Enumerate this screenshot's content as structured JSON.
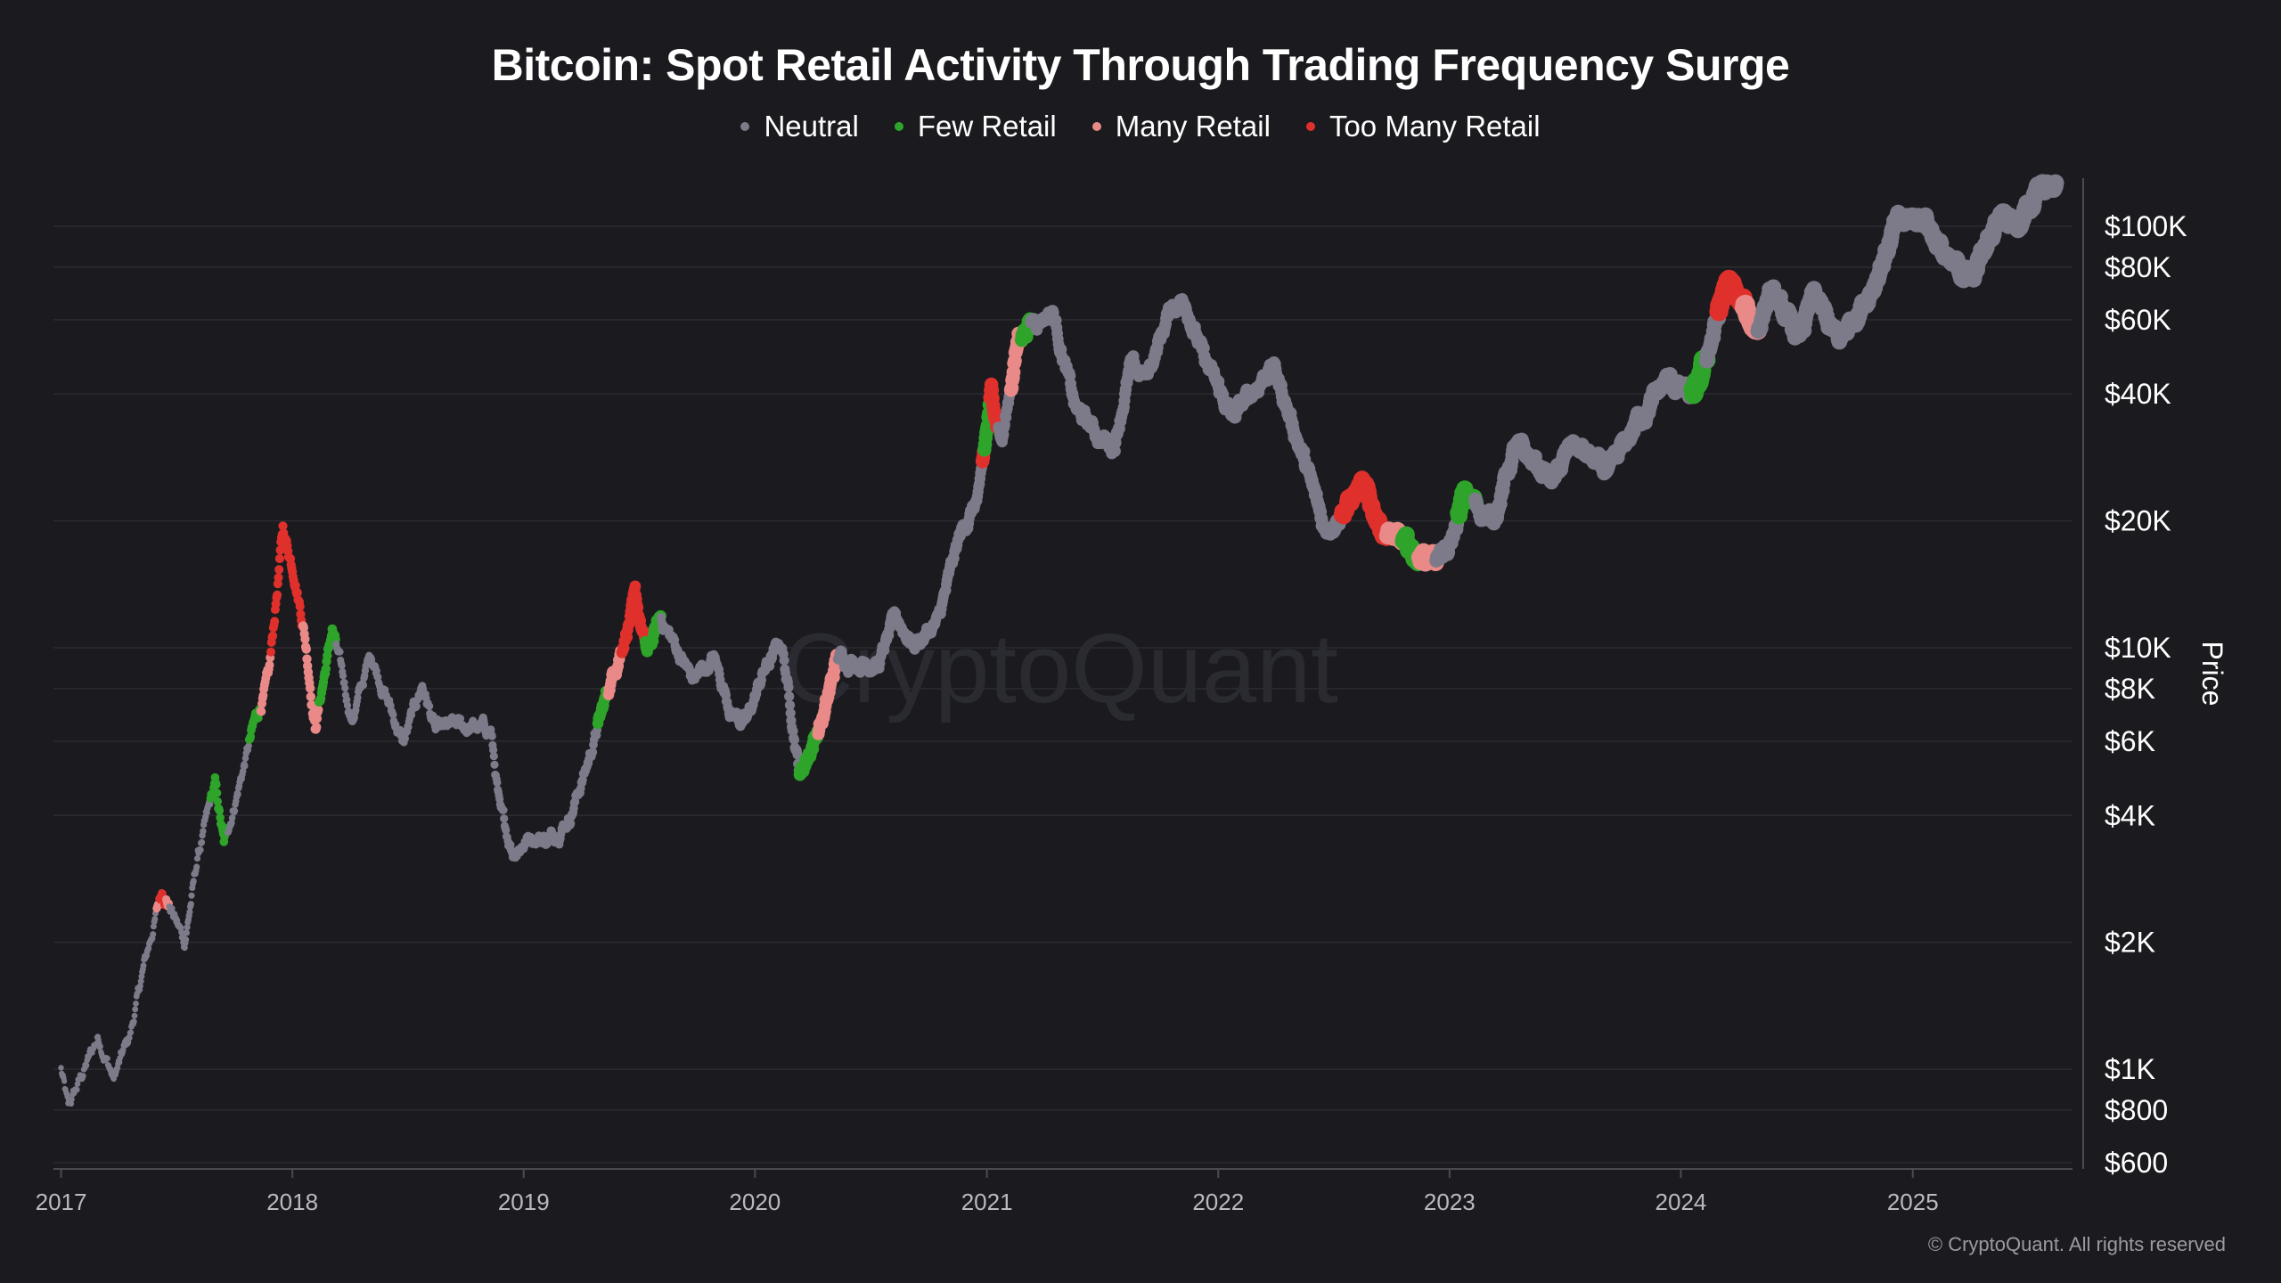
{
  "chart_data": {
    "type": "scatter",
    "title": "Bitcoin: Spot Retail Activity Through Trading Frequency Surge",
    "ylabel": "Price",
    "yscale": "log",
    "ylim": [
      580,
      130000
    ],
    "xlim": [
      "2016-12-20",
      "2025-09-10"
    ],
    "grid": true,
    "legend_position": "top-center",
    "x_ticks": [
      "2017",
      "2018",
      "2019",
      "2020",
      "2021",
      "2022",
      "2023",
      "2024",
      "2025"
    ],
    "y_ticks": [
      {
        "value": 100000,
        "label": "$100K"
      },
      {
        "value": 80000,
        "label": "$80K"
      },
      {
        "value": 60000,
        "label": "$60K"
      },
      {
        "value": 40000,
        "label": "$40K"
      },
      {
        "value": 20000,
        "label": "$20K"
      },
      {
        "value": 10000,
        "label": "$10K"
      },
      {
        "value": 8000,
        "label": "$8K"
      },
      {
        "value": 6000,
        "label": "$6K"
      },
      {
        "value": 4000,
        "label": "$4K"
      },
      {
        "value": 2000,
        "label": "$2K"
      },
      {
        "value": 1000,
        "label": "$1K"
      },
      {
        "value": 800,
        "label": "$800"
      },
      {
        "value": 600,
        "label": "$600"
      }
    ],
    "series": [
      {
        "name": "Neutral",
        "color": "#7d7b8a"
      },
      {
        "name": "Few Retail",
        "color": "#2ea52a"
      },
      {
        "name": "Many Retail",
        "color": "#e98a88"
      },
      {
        "name": "Too Many Retail",
        "color": "#e0302c"
      }
    ],
    "price_path": [
      [
        "2017-01-01",
        1000
      ],
      [
        "2017-01-12",
        800
      ],
      [
        "2017-02-01",
        950
      ],
      [
        "2017-03-01",
        1200
      ],
      [
        "2017-03-25",
        950
      ],
      [
        "2017-04-20",
        1200
      ],
      [
        "2017-05-10",
        1700
      ],
      [
        "2017-06-10",
        2700
      ],
      [
        "2017-07-15",
        2000
      ],
      [
        "2017-08-05",
        3200
      ],
      [
        "2017-09-01",
        4700
      ],
      [
        "2017-09-15",
        3400
      ],
      [
        "2017-10-10",
        4800
      ],
      [
        "2017-11-01",
        6500
      ],
      [
        "2017-11-25",
        8500
      ],
      [
        "2017-12-17",
        19000
      ],
      [
        "2018-01-05",
        15000
      ],
      [
        "2018-01-20",
        11000
      ],
      [
        "2018-02-06",
        6500
      ],
      [
        "2018-03-05",
        11000
      ],
      [
        "2018-04-05",
        6700
      ],
      [
        "2018-05-05",
        9700
      ],
      [
        "2018-06-25",
        5900
      ],
      [
        "2018-07-25",
        8200
      ],
      [
        "2018-08-15",
        6300
      ],
      [
        "2018-09-15",
        6500
      ],
      [
        "2018-11-10",
        6400
      ],
      [
        "2018-11-25",
        4000
      ],
      [
        "2018-12-15",
        3300
      ],
      [
        "2019-01-15",
        3600
      ],
      [
        "2019-02-10",
        3500
      ],
      [
        "2019-03-15",
        4000
      ],
      [
        "2019-04-10",
        5200
      ],
      [
        "2019-05-15",
        8000
      ],
      [
        "2019-06-26",
        13000
      ],
      [
        "2019-07-15",
        9600
      ],
      [
        "2019-08-05",
        11800
      ],
      [
        "2019-09-25",
        8400
      ],
      [
        "2019-10-28",
        9400
      ],
      [
        "2019-11-25",
        7100
      ],
      [
        "2019-12-18",
        6600
      ],
      [
        "2020-01-15",
        8800
      ],
      [
        "2020-02-12",
        10300
      ],
      [
        "2020-03-12",
        5000
      ],
      [
        "2020-04-20",
        7000
      ],
      [
        "2020-05-10",
        9500
      ],
      [
        "2020-06-15",
        9300
      ],
      [
        "2020-07-15",
        9200
      ],
      [
        "2020-08-10",
        11800
      ],
      [
        "2020-09-08",
        10200
      ],
      [
        "2020-10-15",
        11400
      ],
      [
        "2020-11-20",
        18500
      ],
      [
        "2020-12-20",
        23000
      ],
      [
        "2021-01-08",
        40000
      ],
      [
        "2021-01-25",
        31000
      ],
      [
        "2021-02-20",
        55000
      ],
      [
        "2021-03-15",
        60000
      ],
      [
        "2021-04-15",
        63000
      ],
      [
        "2021-05-20",
        37000
      ],
      [
        "2021-06-25",
        32000
      ],
      [
        "2021-07-20",
        30000
      ],
      [
        "2021-08-15",
        46000
      ],
      [
        "2021-09-10",
        44000
      ],
      [
        "2021-10-20",
        65000
      ],
      [
        "2021-11-10",
        67000
      ],
      [
        "2021-12-10",
        48000
      ],
      [
        "2022-01-24",
        35000
      ],
      [
        "2022-03-28",
        47000
      ],
      [
        "2022-05-10",
        30000
      ],
      [
        "2022-06-18",
        19000
      ],
      [
        "2022-08-15",
        24000
      ],
      [
        "2022-09-20",
        19000
      ],
      [
        "2022-11-10",
        16500
      ],
      [
        "2022-12-30",
        16600
      ],
      [
        "2023-01-25",
        23000
      ],
      [
        "2023-03-10",
        20000
      ],
      [
        "2023-04-15",
        30000
      ],
      [
        "2023-06-15",
        25000
      ],
      [
        "2023-07-15",
        30500
      ],
      [
        "2023-09-10",
        25800
      ],
      [
        "2023-10-25",
        34500
      ],
      [
        "2023-12-10",
        43000
      ],
      [
        "2024-01-23",
        39000
      ],
      [
        "2024-03-14",
        73000
      ],
      [
        "2024-05-01",
        57000
      ],
      [
        "2024-05-20",
        70000
      ],
      [
        "2024-07-05",
        54000
      ],
      [
        "2024-07-29",
        68000
      ],
      [
        "2024-09-06",
        53000
      ],
      [
        "2024-10-29",
        72000
      ],
      [
        "2024-12-05",
        100000
      ],
      [
        "2025-01-20",
        106000
      ],
      [
        "2025-02-28",
        80000
      ],
      [
        "2025-04-08",
        77000
      ],
      [
        "2025-05-22",
        111000
      ],
      [
        "2025-06-20",
        101000
      ],
      [
        "2025-07-14",
        120000
      ],
      [
        "2025-08-14",
        123000
      ]
    ],
    "colored_segments": [
      [
        "2017-06-01",
        "2017-06-20",
        "Many Retail"
      ],
      [
        "2017-06-05",
        "2017-06-15",
        "Too Many Retail"
      ],
      [
        "2017-08-25",
        "2017-09-20",
        "Few Retail"
      ],
      [
        "2017-10-25",
        "2017-11-12",
        "Few Retail"
      ],
      [
        "2017-11-12",
        "2017-11-28",
        "Many Retail"
      ],
      [
        "2017-11-28",
        "2018-01-18",
        "Too Many Retail"
      ],
      [
        "2018-01-18",
        "2018-02-12",
        "Many Retail"
      ],
      [
        "2018-02-12",
        "2018-03-10",
        "Few Retail"
      ],
      [
        "2019-04-28",
        "2019-05-15",
        "Few Retail"
      ],
      [
        "2019-05-15",
        "2019-06-05",
        "Many Retail"
      ],
      [
        "2019-06-05",
        "2019-07-12",
        "Too Many Retail"
      ],
      [
        "2019-07-12",
        "2019-08-05",
        "Few Retail"
      ],
      [
        "2020-03-12",
        "2020-04-10",
        "Few Retail"
      ],
      [
        "2020-04-10",
        "2020-05-10",
        "Many Retail"
      ],
      [
        "2020-12-25",
        "2021-01-18",
        "Too Many Retail"
      ],
      [
        "2020-12-28",
        "2021-01-05",
        "Few Retail"
      ],
      [
        "2021-02-08",
        "2021-02-25",
        "Many Retail"
      ],
      [
        "2021-02-25",
        "2021-03-10",
        "Few Retail"
      ],
      [
        "2022-07-15",
        "2022-08-25",
        "Too Many Retail"
      ],
      [
        "2022-08-25",
        "2022-09-25",
        "Too Many Retail"
      ],
      [
        "2022-09-25",
        "2022-10-20",
        "Many Retail"
      ],
      [
        "2022-10-20",
        "2022-11-15",
        "Few Retail"
      ],
      [
        "2022-11-15",
        "2022-12-10",
        "Many Retail"
      ],
      [
        "2023-01-15",
        "2023-02-10",
        "Few Retail"
      ],
      [
        "2024-01-20",
        "2024-02-10",
        "Few Retail"
      ],
      [
        "2024-03-01",
        "2024-04-10",
        "Too Many Retail"
      ],
      [
        "2024-04-10",
        "2024-05-01",
        "Many Retail"
      ]
    ],
    "watermark": "CryptoQuant"
  },
  "copyright": "© CryptoQuant. All rights reserved"
}
